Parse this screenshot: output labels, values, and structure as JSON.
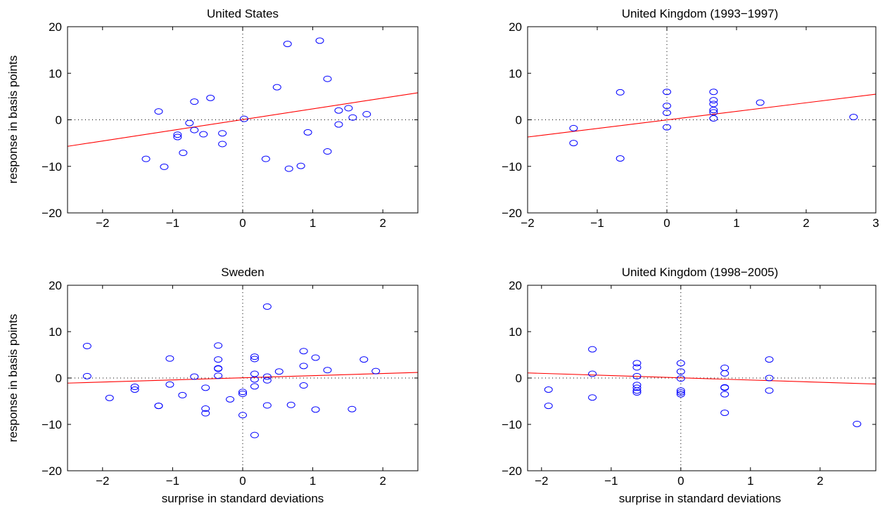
{
  "chart_data": [
    {
      "type": "scatter",
      "title": "United States",
      "xlabel": "",
      "ylabel": "response in basis points",
      "xlim": [
        -2.5,
        2.5
      ],
      "ylim": [
        -20,
        20
      ],
      "xticks": [
        "−2",
        "−1",
        "0",
        "1",
        "2"
      ],
      "yticks": [
        "−20",
        "−10",
        "0",
        "10",
        "20"
      ],
      "xtick_values": [
        -2,
        -1,
        0,
        1,
        2
      ],
      "ytick_values": [
        -20,
        -10,
        0,
        10,
        20
      ],
      "fit_line": {
        "x": [
          -2.5,
          2.5
        ],
        "y": [
          -5.7,
          5.8
        ],
        "color": "#ff0000"
      },
      "marker_color": "#0000ff",
      "points": [
        [
          -1.2,
          1.8
        ],
        [
          -0.93,
          -3.2
        ],
        [
          -0.93,
          -3.7
        ],
        [
          -0.76,
          -0.7
        ],
        [
          -0.69,
          3.9
        ],
        [
          -0.69,
          -2.2
        ],
        [
          -0.56,
          -3.1
        ],
        [
          -0.46,
          4.7
        ],
        [
          -0.29,
          -2.9
        ],
        [
          -0.29,
          -5.2
        ],
        [
          -0.85,
          -7.1
        ],
        [
          -1.38,
          -8.4
        ],
        [
          -1.12,
          -10.1
        ],
        [
          0.02,
          0.2
        ],
        [
          0.33,
          -8.4
        ],
        [
          0.49,
          7.0
        ],
        [
          0.64,
          16.3
        ],
        [
          0.66,
          -10.5
        ],
        [
          0.83,
          -9.9
        ],
        [
          0.93,
          -2.7
        ],
        [
          1.1,
          17.0
        ],
        [
          1.21,
          8.8
        ],
        [
          1.21,
          -6.8
        ],
        [
          1.37,
          2.0
        ],
        [
          1.37,
          -1.0
        ],
        [
          1.51,
          2.5
        ],
        [
          1.57,
          0.5
        ],
        [
          1.77,
          1.2
        ]
      ]
    },
    {
      "type": "scatter",
      "title": "United Kingdom (1993−1997)",
      "xlabel": "",
      "ylabel": "",
      "xlim": [
        -2,
        3
      ],
      "ylim": [
        -20,
        20
      ],
      "xticks": [
        "−2",
        "−1",
        "0",
        "1",
        "2",
        "3"
      ],
      "yticks": [
        "−20",
        "−10",
        "0",
        "10",
        "20"
      ],
      "xtick_values": [
        -2,
        -1,
        0,
        1,
        2,
        3
      ],
      "ytick_values": [
        -20,
        -10,
        0,
        10,
        20
      ],
      "fit_line": {
        "x": [
          -2,
          3
        ],
        "y": [
          -3.7,
          5.5
        ],
        "color": "#ff0000"
      },
      "marker_color": "#0000ff",
      "points": [
        [
          -1.34,
          -1.8
        ],
        [
          -1.34,
          -5.0
        ],
        [
          -0.67,
          5.9
        ],
        [
          -0.67,
          -8.3
        ],
        [
          0.0,
          6.0
        ],
        [
          0.0,
          3.0
        ],
        [
          0.0,
          1.5
        ],
        [
          0.0,
          -1.6
        ],
        [
          0.67,
          6.0
        ],
        [
          0.67,
          4.2
        ],
        [
          0.67,
          3.4
        ],
        [
          0.67,
          2.1
        ],
        [
          0.67,
          1.6
        ],
        [
          0.67,
          0.3
        ],
        [
          1.34,
          3.7
        ],
        [
          2.68,
          0.6
        ]
      ]
    },
    {
      "type": "scatter",
      "title": "Sweden",
      "xlabel": "surprise in standard deviations",
      "ylabel": "response in basis points",
      "xlim": [
        -2.5,
        2.5
      ],
      "ylim": [
        -20,
        20
      ],
      "xticks": [
        "−2",
        "−1",
        "0",
        "1",
        "2"
      ],
      "yticks": [
        "−20",
        "−10",
        "0",
        "10",
        "20"
      ],
      "xtick_values": [
        -2,
        -1,
        0,
        1,
        2
      ],
      "ytick_values": [
        -20,
        -10,
        0,
        10,
        20
      ],
      "fit_line": {
        "x": [
          -2.5,
          2.5
        ],
        "y": [
          -1.1,
          1.2
        ],
        "color": "#ff0000"
      },
      "marker_color": "#0000ff",
      "points": [
        [
          -2.22,
          6.9
        ],
        [
          -2.22,
          0.4
        ],
        [
          -1.9,
          -4.3
        ],
        [
          -1.54,
          -1.9
        ],
        [
          -1.54,
          -2.5
        ],
        [
          -1.2,
          -6.0
        ],
        [
          -1.2,
          -6.0
        ],
        [
          -1.04,
          4.2
        ],
        [
          -1.04,
          -1.4
        ],
        [
          -0.86,
          -3.7
        ],
        [
          -0.69,
          0.3
        ],
        [
          -0.53,
          -2.1
        ],
        [
          -0.53,
          -6.6
        ],
        [
          -0.53,
          -7.6
        ],
        [
          -0.35,
          7.0
        ],
        [
          -0.35,
          4.0
        ],
        [
          -0.35,
          2.1
        ],
        [
          -0.35,
          2.0
        ],
        [
          -0.35,
          0.5
        ],
        [
          -0.18,
          -4.6
        ],
        [
          0.0,
          -3.0
        ],
        [
          0.0,
          -3.4
        ],
        [
          0.0,
          -8.0
        ],
        [
          0.17,
          4.6
        ],
        [
          0.17,
          4.1
        ],
        [
          0.17,
          0.9
        ],
        [
          0.17,
          -0.3
        ],
        [
          0.17,
          -1.8
        ],
        [
          0.17,
          -12.3
        ],
        [
          0.35,
          15.4
        ],
        [
          0.35,
          0.3
        ],
        [
          0.35,
          -0.5
        ],
        [
          0.35,
          -5.9
        ],
        [
          0.52,
          1.4
        ],
        [
          0.69,
          -5.8
        ],
        [
          0.87,
          5.8
        ],
        [
          0.87,
          2.6
        ],
        [
          0.87,
          -1.6
        ],
        [
          1.04,
          4.4
        ],
        [
          1.04,
          -6.8
        ],
        [
          1.21,
          1.7
        ],
        [
          1.56,
          -6.7
        ],
        [
          1.73,
          4.0
        ],
        [
          1.9,
          1.5
        ]
      ]
    },
    {
      "type": "scatter",
      "title": "United Kingdom (1998−2005)",
      "xlabel": "surprise in standard deviations",
      "ylabel": "",
      "xlim": [
        -2.2,
        2.8
      ],
      "ylim": [
        -20,
        20
      ],
      "xticks": [
        "−2",
        "−1",
        "0",
        "1",
        "2"
      ],
      "yticks": [
        "−20",
        "−10",
        "0",
        "10",
        "20"
      ],
      "xtick_values": [
        -2,
        -1,
        0,
        1,
        2
      ],
      "ytick_values": [
        -20,
        -10,
        0,
        10,
        20
      ],
      "fit_line": {
        "x": [
          -2.2,
          2.8
        ],
        "y": [
          1.1,
          -1.3
        ],
        "color": "#ff0000"
      },
      "marker_color": "#0000ff",
      "points": [
        [
          -1.9,
          -2.5
        ],
        [
          -1.9,
          -6.0
        ],
        [
          -1.27,
          6.2
        ],
        [
          -1.27,
          0.9
        ],
        [
          -1.27,
          -4.2
        ],
        [
          -0.63,
          3.2
        ],
        [
          -0.63,
          2.3
        ],
        [
          -0.63,
          0.4
        ],
        [
          -0.63,
          -1.5
        ],
        [
          -0.63,
          -2.1
        ],
        [
          -0.63,
          -2.7
        ],
        [
          -0.63,
          -3.1
        ],
        [
          0.0,
          3.2
        ],
        [
          0.0,
          1.4
        ],
        [
          0.0,
          -0.1
        ],
        [
          0.0,
          -2.7
        ],
        [
          0.0,
          -3.1
        ],
        [
          0.0,
          -3.5
        ],
        [
          0.63,
          2.2
        ],
        [
          0.63,
          1.0
        ],
        [
          0.63,
          -2.0
        ],
        [
          0.63,
          -2.1
        ],
        [
          0.63,
          -3.5
        ],
        [
          0.63,
          -7.5
        ],
        [
          1.27,
          4.0
        ],
        [
          1.27,
          0.0
        ],
        [
          1.27,
          -2.7
        ],
        [
          2.53,
          -9.9
        ]
      ]
    }
  ]
}
